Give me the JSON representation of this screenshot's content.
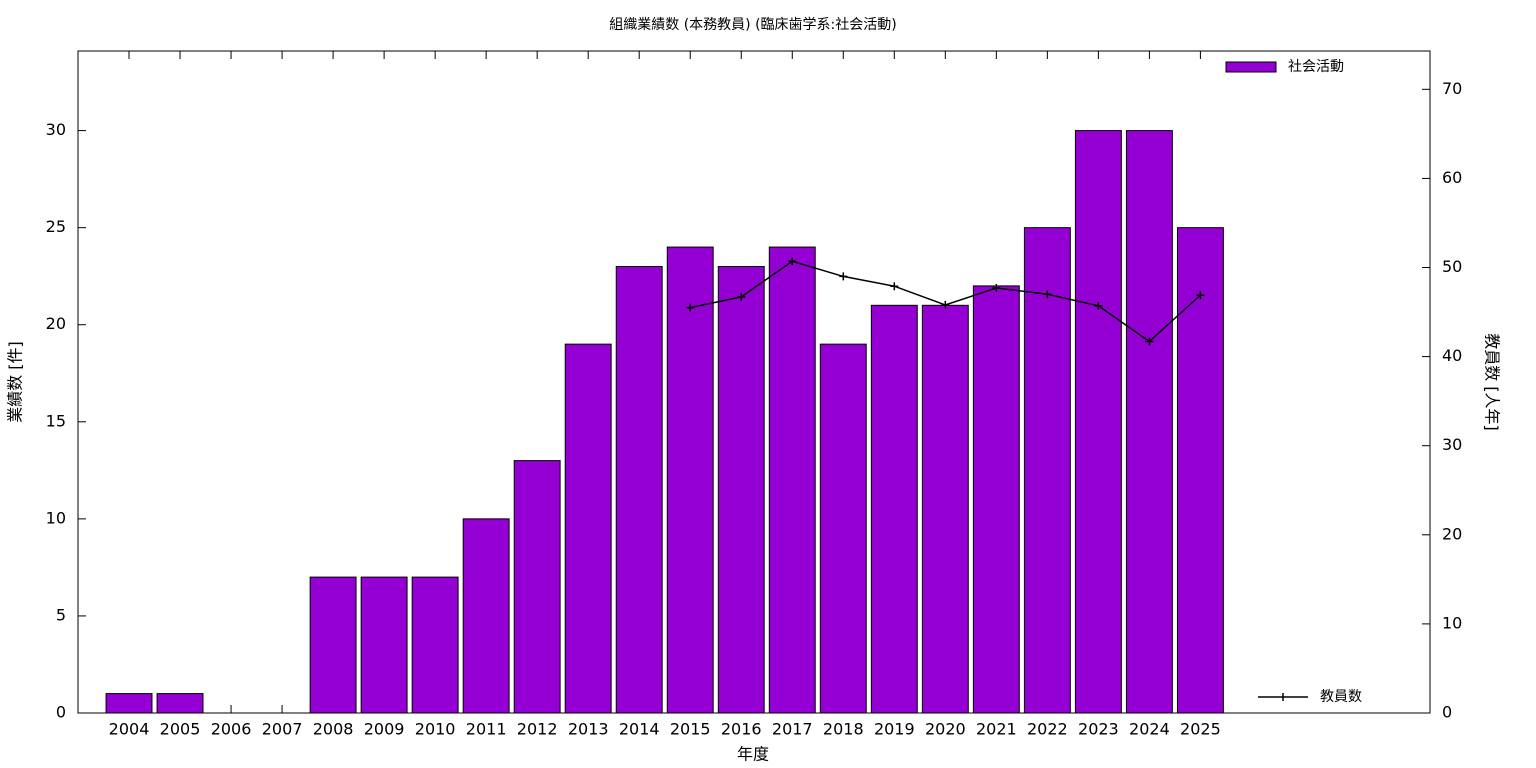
{
  "chart_data": {
    "type": "bar",
    "title": "組織業績数 (本務教員) (臨床歯学系:社会活動)",
    "x_label": "年度",
    "y_label": "業績数 [件]",
    "y2_label": "教員数 [人年]",
    "categories": [
      "2004",
      "2005",
      "2006",
      "2007",
      "2008",
      "2009",
      "2010",
      "2011",
      "2012",
      "2013",
      "2014",
      "2015",
      "2016",
      "2017",
      "2018",
      "2019",
      "2020",
      "2021",
      "2022",
      "2023",
      "2024",
      "2025"
    ],
    "series": [
      {
        "name": "社会活動",
        "type": "bar",
        "color": "#9400d3",
        "values": [
          1,
          1,
          0,
          0,
          7,
          7,
          7,
          10,
          13,
          19,
          23,
          24,
          23,
          24,
          19,
          21,
          21,
          22,
          25,
          30,
          30,
          25
        ]
      },
      {
        "name": "教員数",
        "type": "line",
        "axis": "y2",
        "color": "#000000",
        "values": [
          null,
          null,
          null,
          null,
          null,
          null,
          null,
          null,
          null,
          null,
          null,
          45.5,
          46.7,
          50.7,
          49.0,
          47.9,
          45.8,
          47.7,
          47.0,
          45.7,
          41.7,
          46.9
        ]
      }
    ],
    "ylim": [
      0,
      34.1
    ],
    "yticks": [
      0,
      5,
      10,
      15,
      20,
      25,
      30
    ],
    "y2lim": [
      0,
      74.3
    ],
    "y2ticks": [
      0,
      10,
      20,
      30,
      40,
      50,
      60,
      70
    ],
    "grid": false
  }
}
